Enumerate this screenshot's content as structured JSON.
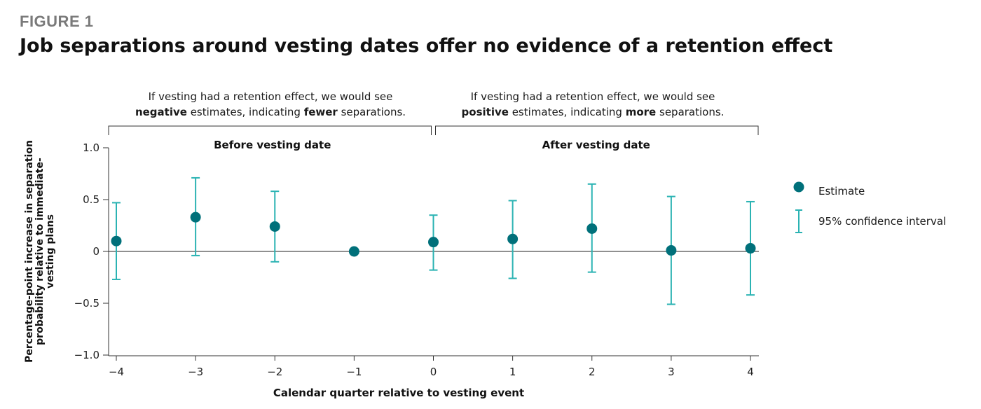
{
  "header": {
    "figure_label": "FIGURE 1",
    "title": "Job separations around vesting dates offer no evidence of a retention effect"
  },
  "annotations": {
    "left": {
      "line1": "If vesting had a retention effect, we would see",
      "part_a": "negative",
      "part_b": " estimates, indicating ",
      "part_c": "fewer",
      "part_d": " separations."
    },
    "right": {
      "line1": "If vesting had a retention effect, we would see",
      "part_a": "positive",
      "part_b": " estimates, indicating ",
      "part_c": "more",
      "part_d": " separations."
    }
  },
  "legend": {
    "estimate": "Estimate",
    "ci": "95% confidence interval"
  },
  "colors": {
    "estimate": "#00707a",
    "ci": "#2bb3b3",
    "axis": "#333333"
  },
  "chart_data": {
    "type": "scatter",
    "title": "Job separations around vesting dates offer no evidence of a retention effect",
    "xlabel": "Calendar quarter relative to vesting event",
    "ylabel": "Percentage-point increase in separation probability relative to immediate-vesting plans",
    "xlim": [
      -4,
      4
    ],
    "ylim": [
      -1.0,
      1.0
    ],
    "x_ticks": [
      -4,
      -3,
      -2,
      -1,
      0,
      1,
      2,
      3,
      4
    ],
    "x_tick_labels": [
      "−4",
      "−3",
      "−2",
      "−1",
      "0",
      "1",
      "2",
      "3",
      "4"
    ],
    "y_ticks": [
      1.0,
      0.5,
      0,
      -0.5,
      -1.0
    ],
    "y_tick_labels": [
      "1.0",
      "0.5",
      "0",
      "−0.5",
      "−1.0"
    ],
    "grid": false,
    "region_labels": [
      "Before vesting date",
      "After vesting date"
    ],
    "legend_position": "right",
    "series": [
      {
        "name": "Estimate",
        "x": [
          -4,
          -3,
          -2,
          -1,
          0,
          1,
          2,
          3,
          4
        ],
        "y": [
          0.1,
          0.33,
          0.24,
          0.0,
          0.09,
          0.12,
          0.22,
          0.01,
          0.03
        ],
        "ci_low": [
          -0.27,
          -0.04,
          -0.1,
          null,
          -0.18,
          -0.26,
          -0.2,
          -0.51,
          -0.42
        ],
        "ci_high": [
          0.47,
          0.71,
          0.58,
          null,
          0.35,
          0.49,
          0.65,
          0.53,
          0.48
        ]
      }
    ]
  }
}
